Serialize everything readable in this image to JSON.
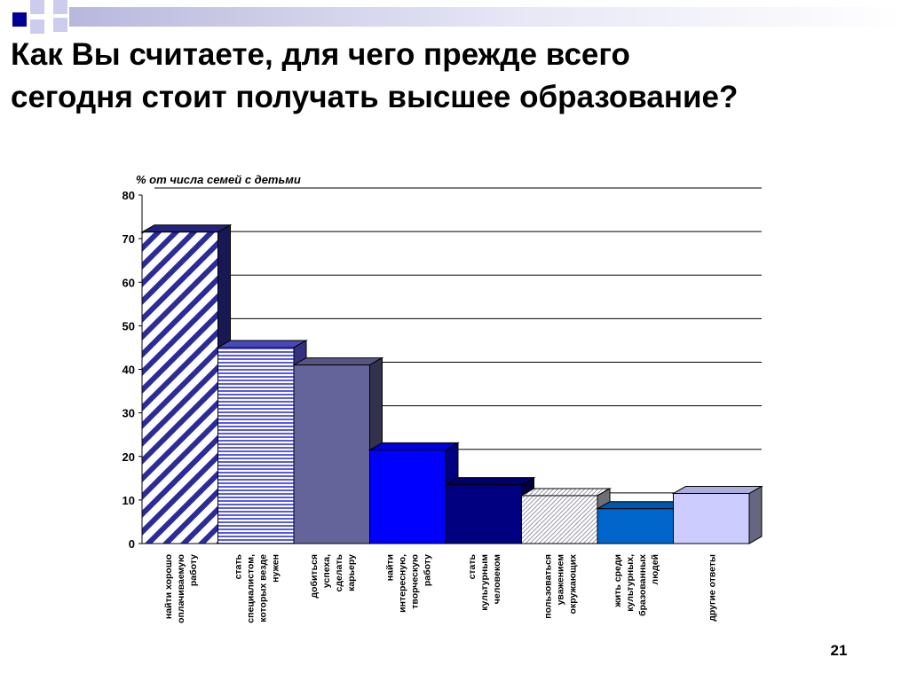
{
  "slide": {
    "title": "Как Вы считаете, для чего прежде всего\nсегодня стоит получать высшее образование?",
    "page_number": "21"
  },
  "chart_data": {
    "type": "bar",
    "ylabel": "% от числа семей с детьми",
    "ylim": [
      0,
      80
    ],
    "yticks": [
      0,
      10,
      20,
      30,
      40,
      50,
      60,
      70,
      80
    ],
    "grid": true,
    "categories": [
      "найти хорошо оплачиваемую работу",
      "стать специалистом, которых везде нужен",
      "добиться успеха, сделать карьеру",
      "найти интересную, творческую работу",
      "стать культурным человеком",
      "пользоваться уважением окружающих",
      "жить среди культурных, бразованных людей",
      "другие ответы"
    ],
    "values": [
      71.5,
      45,
      41,
      21.5,
      13.5,
      11,
      8,
      11.5
    ],
    "colors": [
      "#2b2b9a",
      "#5a5ae6",
      "#64649a",
      "#0000ff",
      "#000080",
      "#c8c8d8",
      "#0066cc",
      "#ccccff"
    ],
    "patterns": [
      "diagonal-stripes",
      "horizontal-lines",
      "solid",
      "solid",
      "solid",
      "light-diagonal",
      "solid",
      "solid"
    ]
  }
}
